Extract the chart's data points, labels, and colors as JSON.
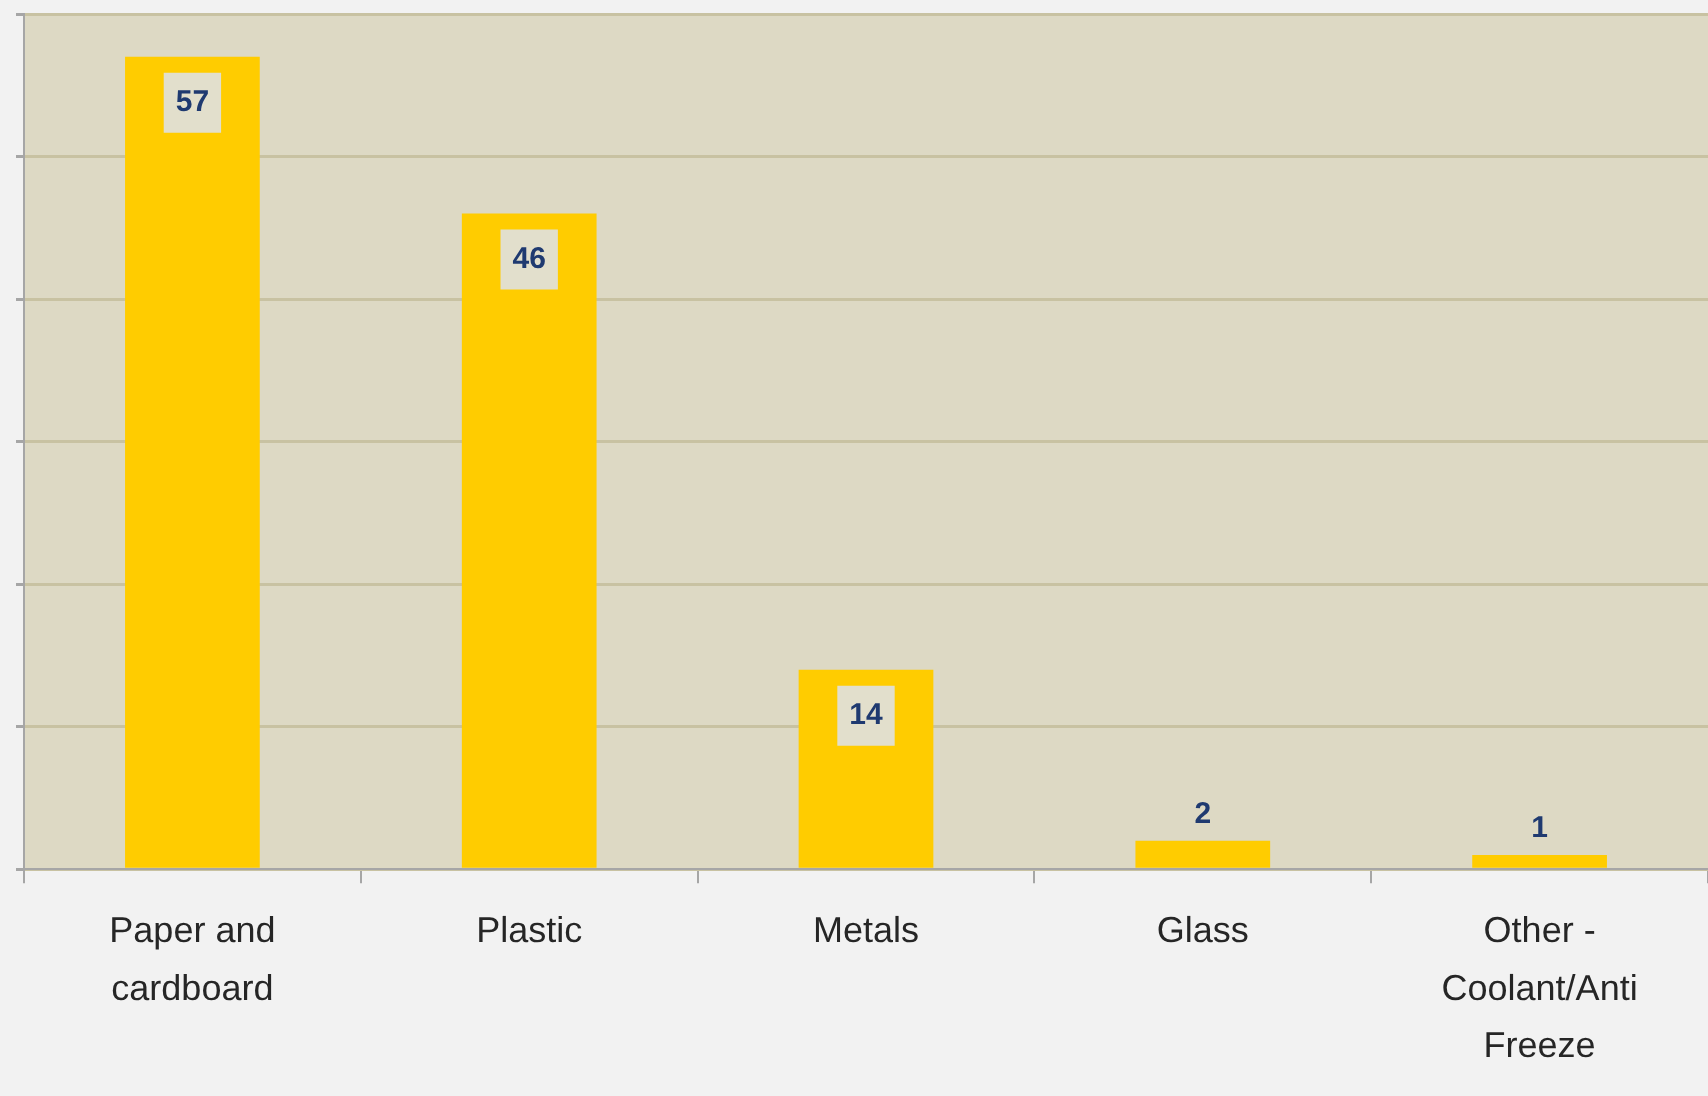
{
  "chart_data": {
    "type": "bar",
    "categories": [
      "Paper and cardboard",
      "Plastic",
      "Metals",
      "Glass",
      "Other - Coolant/Anti Freeze"
    ],
    "values": [
      57,
      46,
      14,
      2,
      1
    ],
    "color": "#ffcc00",
    "ylim": [
      0,
      60
    ],
    "yticks": [
      {
        "value": 0,
        "label": null
      },
      {
        "value": 10,
        "label": null
      },
      {
        "value": 20,
        "label": null
      },
      {
        "value": 30,
        "label": null
      },
      {
        "value": 40,
        "label": null
      },
      {
        "value": 50,
        "label": null
      },
      {
        "value": 60,
        "label": null
      }
    ],
    "grid": "y",
    "tick_labels": "x",
    "data_labels": true
  }
}
